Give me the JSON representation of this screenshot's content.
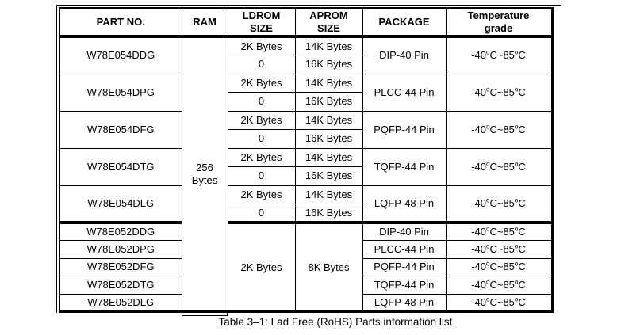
{
  "colors": {
    "text": "#000000",
    "background": "#ffffff",
    "border": "#000000"
  },
  "caption": "Table 3–1: Lad Free (RoHS) Parts information list",
  "table": {
    "headers": [
      "PART NO.",
      "RAM",
      "LDROM SIZE",
      "APROM SIZE",
      "PACKAGE",
      "Temperature grade"
    ],
    "ram": "256 Bytes",
    "groups_054": [
      {
        "part": "W78E054DDG",
        "package": "DIP-40 Pin",
        "temp": "-40°C~85°C",
        "subrows": [
          {
            "ldrom": "2K Bytes",
            "aprom": "14K Bytes"
          },
          {
            "ldrom": "0",
            "aprom": "16K Bytes"
          }
        ]
      },
      {
        "part": "W78E054DPG",
        "package": "PLCC-44 Pin",
        "temp": "-40°C~85°C",
        "subrows": [
          {
            "ldrom": "2K Bytes",
            "aprom": "14K Bytes"
          },
          {
            "ldrom": "0",
            "aprom": "16K Bytes"
          }
        ]
      },
      {
        "part": "W78E054DFG",
        "package": "PQFP-44 Pin",
        "temp": "-40°C~85°C",
        "subrows": [
          {
            "ldrom": "2K Bytes",
            "aprom": "14K Bytes"
          },
          {
            "ldrom": "0",
            "aprom": "16K Bytes"
          }
        ]
      },
      {
        "part": "W78E054DTG",
        "package": "TQFP-44 Pin",
        "temp": "-40°C~85°C",
        "subrows": [
          {
            "ldrom": "2K Bytes",
            "aprom": "14K Bytes"
          },
          {
            "ldrom": "0",
            "aprom": "16K Bytes"
          }
        ]
      },
      {
        "part": "W78E054DLG",
        "package": "LQFP-48 Pin",
        "temp": "-40°C~85°C",
        "subrows": [
          {
            "ldrom": "2K Bytes",
            "aprom": "14K Bytes"
          },
          {
            "ldrom": "0",
            "aprom": "16K Bytes"
          }
        ]
      }
    ],
    "section_052": {
      "ldrom": "2K Bytes",
      "aprom": "8K Bytes",
      "rows": [
        {
          "part": "W78E052DDG",
          "package": "DIP-40 Pin",
          "temp": "-40°C~85°C"
        },
        {
          "part": "W78E052DPG",
          "package": "PLCC-44 Pin",
          "temp": "-40°C~85°C"
        },
        {
          "part": "W78E052DFG",
          "package": "PQFP-44 Pin",
          "temp": "-40°C~85°C"
        },
        {
          "part": "W78E052DTG",
          "package": "TQFP-44 Pin",
          "temp": "-40°C~85°C"
        },
        {
          "part": "W78E052DLG",
          "package": "LQFP-48 Pin",
          "temp": "-40°C~85°C"
        }
      ]
    }
  }
}
